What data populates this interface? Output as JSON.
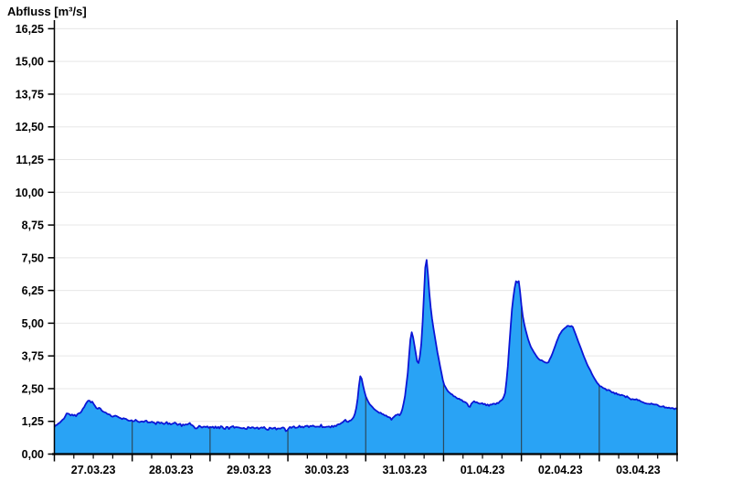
{
  "page": {
    "background": "#ffffff"
  },
  "chart_data": {
    "type": "area",
    "title": "Abfluss [m³/s]",
    "series_name": "Abfluss",
    "unit": "m³/s",
    "legend": "none",
    "grid": "horizontal-light, vertical day lines over fill",
    "x_axis": {
      "tick_labels": [
        "27.03.23",
        "28.03.23",
        "29.03.23",
        "30.03.23",
        "31.03.23",
        "01.04.23",
        "02.04.23",
        "03.04.23"
      ],
      "range_days": [
        0,
        8
      ],
      "major_tick_interval_days": 1,
      "minor_tick_interval_hours": 6
    },
    "y_axis": {
      "tick_labels": [
        "0,00",
        "1,25",
        "2,50",
        "3,75",
        "5,00",
        "6,25",
        "7,50",
        "8,75",
        "10,00",
        "11,25",
        "12,50",
        "13,75",
        "15,00",
        "16,25"
      ],
      "tick_values": [
        0,
        1.25,
        2.5,
        3.75,
        5,
        6.25,
        7.5,
        8.75,
        10,
        11.25,
        12.5,
        13.75,
        15,
        16.25
      ],
      "range": [
        0,
        16.25
      ]
    },
    "colors": {
      "fill": "#29A3F5",
      "line": "#0B16D6",
      "grid": "#e7e7e7",
      "day_line": "#2b4a5e",
      "axis": "#000000",
      "text": "#000000"
    },
    "points": [
      [
        0.0,
        1.08
      ],
      [
        0.04,
        1.12
      ],
      [
        0.08,
        1.22
      ],
      [
        0.12,
        1.35
      ],
      [
        0.16,
        1.56
      ],
      [
        0.19,
        1.5
      ],
      [
        0.23,
        1.48
      ],
      [
        0.27,
        1.45
      ],
      [
        0.3,
        1.52
      ],
      [
        0.34,
        1.6
      ],
      [
        0.38,
        1.78
      ],
      [
        0.41,
        1.95
      ],
      [
        0.44,
        2.05
      ],
      [
        0.46,
        1.98
      ],
      [
        0.48,
        2.02
      ],
      [
        0.5,
        1.92
      ],
      [
        0.53,
        1.8
      ],
      [
        0.56,
        1.72
      ],
      [
        0.58,
        1.77
      ],
      [
        0.61,
        1.65
      ],
      [
        0.65,
        1.58
      ],
      [
        0.7,
        1.5
      ],
      [
        0.75,
        1.45
      ],
      [
        0.8,
        1.42
      ],
      [
        0.85,
        1.38
      ],
      [
        0.9,
        1.35
      ],
      [
        0.95,
        1.3
      ],
      [
        1.0,
        1.28
      ],
      [
        1.05,
        1.26
      ],
      [
        1.1,
        1.25
      ],
      [
        1.15,
        1.22
      ],
      [
        1.2,
        1.24
      ],
      [
        1.25,
        1.2
      ],
      [
        1.3,
        1.18
      ],
      [
        1.35,
        1.2
      ],
      [
        1.4,
        1.16
      ],
      [
        1.45,
        1.18
      ],
      [
        1.5,
        1.15
      ],
      [
        1.55,
        1.17
      ],
      [
        1.6,
        1.12
      ],
      [
        1.65,
        1.1
      ],
      [
        1.7,
        1.14
      ],
      [
        1.73,
        1.2
      ],
      [
        1.78,
        1.08
      ],
      [
        1.82,
        0.96
      ],
      [
        1.86,
        1.06
      ],
      [
        1.9,
        1.05
      ],
      [
        1.95,
        1.03
      ],
      [
        2.0,
        1.02
      ],
      [
        2.1,
        1.03
      ],
      [
        2.2,
        1.0
      ],
      [
        2.3,
        1.02
      ],
      [
        2.4,
        0.98
      ],
      [
        2.5,
        1.0
      ],
      [
        2.6,
        0.97
      ],
      [
        2.7,
        0.98
      ],
      [
        2.8,
        0.96
      ],
      [
        2.9,
        1.0
      ],
      [
        2.95,
        1.02
      ],
      [
        2.98,
        0.82
      ],
      [
        3.01,
        1.0
      ],
      [
        3.05,
        1.04
      ],
      [
        3.1,
        1.03
      ],
      [
        3.2,
        1.06
      ],
      [
        3.3,
        1.05
      ],
      [
        3.4,
        1.08
      ],
      [
        3.5,
        1.06
      ],
      [
        3.58,
        1.04
      ],
      [
        3.64,
        1.12
      ],
      [
        3.7,
        1.2
      ],
      [
        3.74,
        1.3
      ],
      [
        3.77,
        1.24
      ],
      [
        3.8,
        1.28
      ],
      [
        3.84,
        1.38
      ],
      [
        3.87,
        1.6
      ],
      [
        3.9,
        2.2
      ],
      [
        3.92,
        2.8
      ],
      [
        3.935,
        3.05
      ],
      [
        3.95,
        2.85
      ],
      [
        3.97,
        2.55
      ],
      [
        4.0,
        2.2
      ],
      [
        4.04,
        1.95
      ],
      [
        4.08,
        1.8
      ],
      [
        4.13,
        1.68
      ],
      [
        4.18,
        1.58
      ],
      [
        4.23,
        1.5
      ],
      [
        4.28,
        1.42
      ],
      [
        4.33,
        1.36
      ],
      [
        4.37,
        1.42
      ],
      [
        4.4,
        1.52
      ],
      [
        4.43,
        1.46
      ],
      [
        4.46,
        1.6
      ],
      [
        4.5,
        2.1
      ],
      [
        4.54,
        3.1
      ],
      [
        4.57,
        4.3
      ],
      [
        4.59,
        4.66
      ],
      [
        4.61,
        4.45
      ],
      [
        4.64,
        3.9
      ],
      [
        4.66,
        3.55
      ],
      [
        4.68,
        3.48
      ],
      [
        4.7,
        3.8
      ],
      [
        4.72,
        4.4
      ],
      [
        4.74,
        5.6
      ],
      [
        4.76,
        6.9
      ],
      [
        4.775,
        7.55
      ],
      [
        4.79,
        7.3
      ],
      [
        4.81,
        6.4
      ],
      [
        4.83,
        5.7
      ],
      [
        4.86,
        5.0
      ],
      [
        4.89,
        4.45
      ],
      [
        4.92,
        3.9
      ],
      [
        4.95,
        3.45
      ],
      [
        4.98,
        3.0
      ],
      [
        5.0,
        2.68
      ],
      [
        5.05,
        2.42
      ],
      [
        5.1,
        2.3
      ],
      [
        5.15,
        2.18
      ],
      [
        5.2,
        2.1
      ],
      [
        5.25,
        2.02
      ],
      [
        5.3,
        1.95
      ],
      [
        5.33,
        1.75
      ],
      [
        5.36,
        1.95
      ],
      [
        5.4,
        2.02
      ],
      [
        5.45,
        1.95
      ],
      [
        5.5,
        1.92
      ],
      [
        5.55,
        1.9
      ],
      [
        5.6,
        1.88
      ],
      [
        5.65,
        1.92
      ],
      [
        5.7,
        1.96
      ],
      [
        5.75,
        2.05
      ],
      [
        5.79,
        2.3
      ],
      [
        5.82,
        3.1
      ],
      [
        5.85,
        4.4
      ],
      [
        5.88,
        5.6
      ],
      [
        5.91,
        6.3
      ],
      [
        5.93,
        6.6
      ],
      [
        5.95,
        6.55
      ],
      [
        5.97,
        6.62
      ],
      [
        5.99,
        6.0
      ],
      [
        6.01,
        5.4
      ],
      [
        6.04,
        4.9
      ],
      [
        6.08,
        4.45
      ],
      [
        6.12,
        4.1
      ],
      [
        6.16,
        3.9
      ],
      [
        6.2,
        3.7
      ],
      [
        6.25,
        3.58
      ],
      [
        6.3,
        3.5
      ],
      [
        6.34,
        3.48
      ],
      [
        6.38,
        3.7
      ],
      [
        6.43,
        4.1
      ],
      [
        6.48,
        4.5
      ],
      [
        6.53,
        4.75
      ],
      [
        6.58,
        4.88
      ],
      [
        6.62,
        4.92
      ],
      [
        6.66,
        4.85
      ],
      [
        6.7,
        4.55
      ],
      [
        6.75,
        4.15
      ],
      [
        6.8,
        3.75
      ],
      [
        6.85,
        3.4
      ],
      [
        6.9,
        3.1
      ],
      [
        6.95,
        2.82
      ],
      [
        7.0,
        2.62
      ],
      [
        7.05,
        2.52
      ],
      [
        7.1,
        2.45
      ],
      [
        7.15,
        2.4
      ],
      [
        7.2,
        2.32
      ],
      [
        7.25,
        2.28
      ],
      [
        7.3,
        2.22
      ],
      [
        7.35,
        2.2
      ],
      [
        7.4,
        2.12
      ],
      [
        7.45,
        2.08
      ],
      [
        7.5,
        2.05
      ],
      [
        7.55,
        2.0
      ],
      [
        7.6,
        1.96
      ],
      [
        7.65,
        1.92
      ],
      [
        7.7,
        1.9
      ],
      [
        7.75,
        1.86
      ],
      [
        7.8,
        1.83
      ],
      [
        7.85,
        1.8
      ],
      [
        7.9,
        1.77
      ],
      [
        7.95,
        1.74
      ],
      [
        8.0,
        1.72
      ]
    ]
  }
}
